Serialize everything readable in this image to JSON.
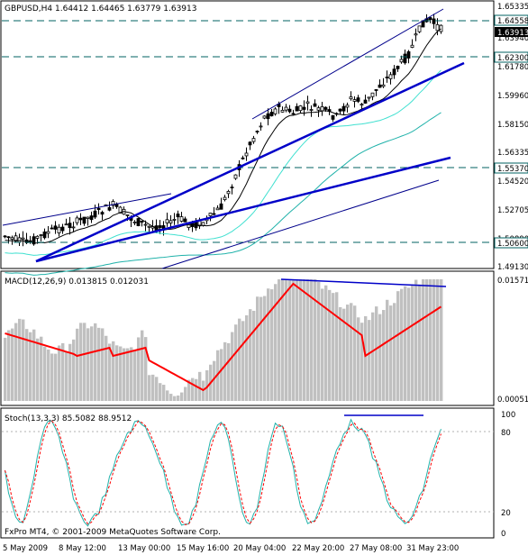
{
  "chart": {
    "title": "GBPUSD,H4  1.64412 1.64465 1.63779 1.63913",
    "copyright": "FxPro MT4, © 2001-2009 MetaQuotes Software Corp.",
    "price_labels": [
      "1.65335",
      "1.64558",
      "1.63940",
      "1.62300",
      "1.61780",
      "1.59960",
      "1.58150",
      "1.56335",
      "1.55370",
      "1.54520",
      "1.52705",
      "1.50890",
      "1.50600",
      "1.49130"
    ],
    "current_price": "1.63913",
    "level_labels": [
      "1.64558",
      "1.62300",
      "1.55370",
      "1.50600"
    ],
    "macd": {
      "title": "MACD(12,26,9) 0.013815 0.012031",
      "labels": [
        "0.015715",
        "0.000517"
      ]
    },
    "stoch": {
      "title": "Stoch(13,3,3) 85.5082 88.9512",
      "labels": [
        "100",
        "80",
        "20",
        "0"
      ]
    },
    "time_labels": [
      "5 May 2009",
      "8 May 12:00",
      "13 May 00:00",
      "15 May 16:00",
      "20 May 04:00",
      "22 May 20:00",
      "27 May 08:00",
      "31 May 23:00"
    ],
    "colors": {
      "up_candle": "#ffffff",
      "down_candle": "#000000",
      "trend": "#0000c8",
      "channel": "#00008b",
      "ma_black": "#000000",
      "ma_green": "#40e0d0",
      "ma_teal": "#20b2aa",
      "macd_hist": "#c0c0c0",
      "macd_signal": "#ff0000",
      "stoch_main": "#20b2aa",
      "stoch_signal": "#ff0000",
      "level_line": "#006060",
      "price_box_current": "#000000"
    }
  }
}
